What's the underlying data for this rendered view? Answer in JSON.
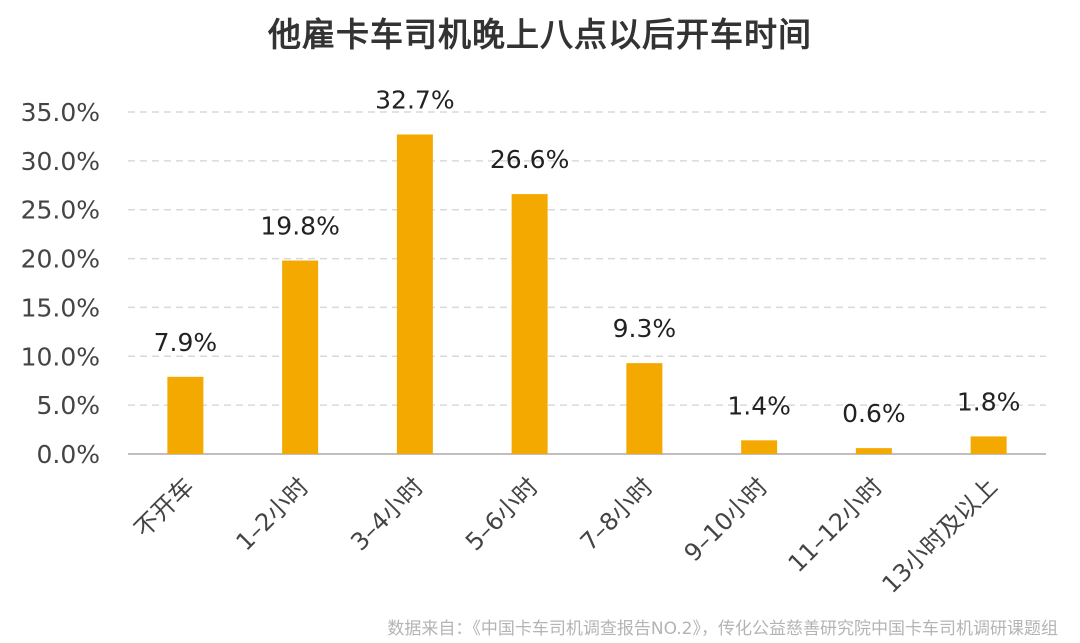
{
  "chart_data": {
    "type": "bar",
    "title": "他雇卡车司机晚上八点以后开车时间",
    "categories": [
      "不开车",
      "1–2小时",
      "3–4小时",
      "5–6小时",
      "7–8小时",
      "9–10小时",
      "11–12小时",
      "13小时及以上"
    ],
    "values": [
      7.9,
      19.8,
      32.7,
      26.6,
      9.3,
      1.4,
      0.6,
      1.8
    ],
    "value_labels": [
      "7.9%",
      "19.8%",
      "32.7%",
      "26.6%",
      "9.3%",
      "1.4%",
      "0.6%",
      "1.8%"
    ],
    "ylim": [
      0,
      35
    ],
    "yticks": [
      0,
      5,
      10,
      15,
      20,
      25,
      30,
      35
    ],
    "ytick_labels": [
      "0.0%",
      "5.0%",
      "10.0%",
      "15.0%",
      "20.0%",
      "25.0%",
      "30.0%",
      "35.0%"
    ],
    "xlabel": "",
    "ylabel": "",
    "grid": true,
    "legend": "none",
    "bar_color": "#F4A900",
    "grid_color": "#d9d9d9"
  },
  "source": "数据来自：《中国卡车司机调查报告NO.2》，传化公益慈善研究院中国卡车司机调研课题组"
}
